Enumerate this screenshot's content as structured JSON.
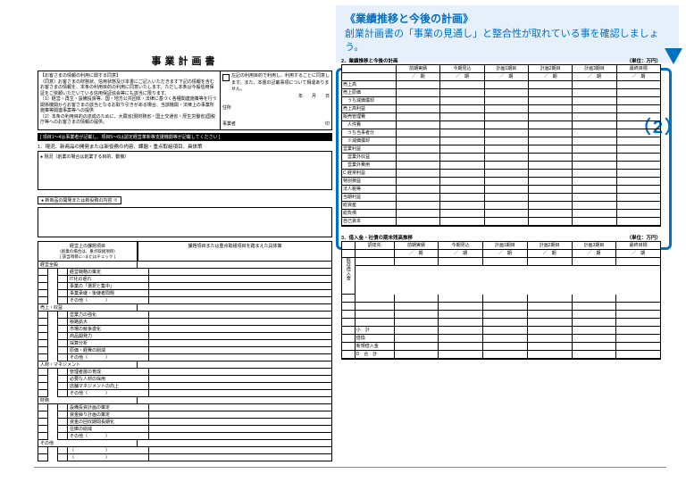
{
  "callout": {
    "title": "《業績推移と今後の計画》",
    "body": "創業計画書の「事業の見通し」と整合性が取れている事を確認しましょう。"
  },
  "marker": "（2）",
  "doc": {
    "title": "事業計画書"
  },
  "header": {
    "disclaimer": "【お客さまの情報の利用に関する同意】\n（同意）お客さまの財務状、信用状態及び本書にご記入いただきます下記の情報を含むお客さまの情報を、本条の利用目的の利用に同意いたします。ただし本条は今般信用保証をご依頼いただいている信用保証協会等にも該当に限ります。\n〔1〕経営・再生・設備投資等、国・地方公共団体・法律に基づく各種関連施策等を行う関係機関からお客さまの該当となるお取り引きがある場合、当該機関・法律上の事業所施策等関連事案等への提供\n〔2〕本条の利用目的の達成のために、大蔵省(現財務省・国土交通省・厚生労働省)国税庁等へのお客さまの情報の提供。",
    "agree": "左記の利用目的で利用し、利用することに同意します。また、本書の記載事項について相違ありません。",
    "date_line": "年　　月　　日",
    "addr_label": "住所",
    "name_label": "事業者",
    "seal": "印"
  },
  "bar_text": "[ 項目1〜4は事業者が記載し、項目5〜6は認定経営革新等支援機関等が記載してください ]",
  "sec1": {
    "title": "1．現況、新商品の開発または新役務の内容、課題・重点取組項目、具体策",
    "box1_label": "● 現況（創業の場合は創業する目的、動機）",
    "box2_label": "● 新商品の開発または新役務の内容 ※"
  },
  "checklist": {
    "header_left_1": "経営上の課題項目",
    "header_left_2": "（創業の場合は、重点取組項目）",
    "header_left_3": "[ 該当項目に○またはチェック ]",
    "header_right": "課題項目または重点取組項目を踏まえた具体策",
    "groups": [
      {
        "name": "経営全般",
        "items": [
          "経営戦略の策定",
          "IT化の遅れ",
          "事業の「選択と集中」",
          "事業承継・後継者問題",
          "その他（　　　　）"
        ]
      },
      {
        "name": "売上・収益",
        "items": [
          "営業力の強化",
          "販路拡大",
          "市場の競争激化",
          "商品開発力",
          "採算分析",
          "原価・経費の削減",
          "その他（　　　　）"
        ]
      },
      {
        "name": "人材・マネジメント",
        "items": [
          "管理者層の育成",
          "必要な人材の採用",
          "店舗マネジメントの向上",
          "その他（　　　　）"
        ]
      },
      {
        "name": "財務",
        "items": [
          "設備投資計画の策定",
          "資金繰り計画の策定",
          "資金の回収期間長期化",
          "在庫の削減",
          "その他（　　　　）"
        ]
      },
      {
        "name": "その他",
        "items": [
          "（　　　　　　　）",
          "（　　　　　　　）"
        ]
      }
    ]
  },
  "sec2": {
    "title": "2．業績推移と今後の計画",
    "unit": "（単位：万円）",
    "cols": [
      "前期実績",
      "今期見込",
      "計画1期目",
      "計画2期目",
      "計画3期目",
      "最終目標"
    ],
    "sub": "／　期",
    "rows": [
      "売上高",
      "売上原価",
      "　うち減価償却",
      "売上高利益",
      "販売管理費",
      "　人件費",
      "　うち当事者分",
      "　※減価償却",
      "営業利益",
      "　営業外収益",
      "　営業外費用",
      "C 経常利益",
      "特別損益",
      "法人税等",
      "当期利益",
      "総資産",
      "総負債",
      "自己資本"
    ]
  },
  "sec3": {
    "title": "3．借入金・社債の期末残高推移",
    "unit": "（単位：万円）",
    "label_col": "調達先",
    "vlabel": "既存借入金",
    "bottom_rows": [
      "小　計",
      "借換",
      "新規借入金",
      "D　合　計"
    ]
  }
}
